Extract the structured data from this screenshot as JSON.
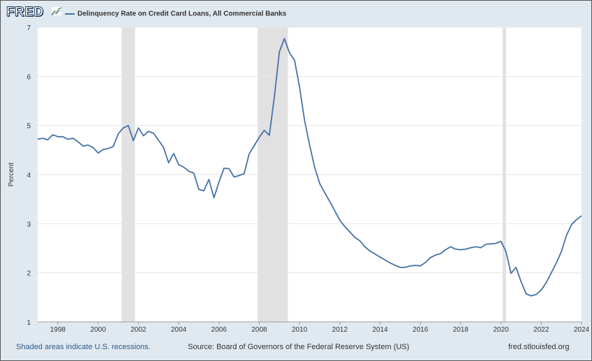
{
  "header": {
    "logo_text": "FRED",
    "logo_icon": "line-chart-icon",
    "series_legend": "Delinquency Rate on Credit Card Loans, All Commercial Banks"
  },
  "footer": {
    "note": "Shaded areas indicate U.S. recessions.",
    "source": "Source: Board of Governors of the Federal Reserve System (US)",
    "site": "fred.stlouisfed.org"
  },
  "colors": {
    "line": "#4572a7",
    "recession": "#e1e1e1",
    "grid": "#e6e6e6",
    "background": "#e1e9f0"
  },
  "chart_data": {
    "type": "line",
    "title": "Delinquency Rate on Credit Card Loans, All Commercial Banks",
    "xlabel": "",
    "ylabel": "Percent",
    "xlim": [
      1997.0,
      2024.0
    ],
    "ylim": [
      1,
      7
    ],
    "yticks": [
      1,
      2,
      3,
      4,
      5,
      6,
      7
    ],
    "xticks": [
      1998,
      2000,
      2002,
      2004,
      2006,
      2008,
      2010,
      2012,
      2014,
      2016,
      2018,
      2020,
      2022,
      2024
    ],
    "grid": true,
    "recessions": [
      [
        2001.17,
        2001.83
      ],
      [
        2007.92,
        2009.42
      ],
      [
        2020.08,
        2020.25
      ]
    ],
    "series": [
      {
        "name": "Delinquency Rate on Credit Card Loans, All Commercial Banks",
        "x": [
          1997.0,
          1997.25,
          1997.5,
          1997.75,
          1998.0,
          1998.25,
          1998.5,
          1998.75,
          1999.0,
          1999.25,
          1999.5,
          1999.75,
          2000.0,
          2000.25,
          2000.5,
          2000.75,
          2001.0,
          2001.25,
          2001.5,
          2001.75,
          2002.0,
          2002.25,
          2002.5,
          2002.75,
          2003.0,
          2003.25,
          2003.5,
          2003.75,
          2004.0,
          2004.25,
          2004.5,
          2004.75,
          2005.0,
          2005.25,
          2005.5,
          2005.75,
          2006.0,
          2006.25,
          2006.5,
          2006.75,
          2007.0,
          2007.25,
          2007.5,
          2007.75,
          2008.0,
          2008.25,
          2008.5,
          2008.75,
          2009.0,
          2009.25,
          2009.5,
          2009.75,
          2010.0,
          2010.25,
          2010.5,
          2010.75,
          2011.0,
          2011.25,
          2011.5,
          2011.75,
          2012.0,
          2012.25,
          2012.5,
          2012.75,
          2013.0,
          2013.25,
          2013.5,
          2013.75,
          2014.0,
          2014.25,
          2014.5,
          2014.75,
          2015.0,
          2015.25,
          2015.5,
          2015.75,
          2016.0,
          2016.25,
          2016.5,
          2016.75,
          2017.0,
          2017.25,
          2017.5,
          2017.75,
          2018.0,
          2018.25,
          2018.5,
          2018.75,
          2019.0,
          2019.25,
          2019.5,
          2019.75,
          2020.0,
          2020.25,
          2020.5,
          2020.75,
          2021.0,
          2021.25,
          2021.5,
          2021.75,
          2022.0,
          2022.25,
          2022.5,
          2022.75,
          2023.0,
          2023.25,
          2023.5,
          2023.75,
          2024.0
        ],
        "values": [
          4.72,
          4.74,
          4.71,
          4.81,
          4.77,
          4.77,
          4.72,
          4.74,
          4.67,
          4.58,
          4.6,
          4.55,
          4.44,
          4.51,
          4.53,
          4.57,
          4.83,
          4.95,
          5.0,
          4.69,
          4.95,
          4.79,
          4.88,
          4.84,
          4.7,
          4.55,
          4.24,
          4.43,
          4.2,
          4.15,
          4.07,
          4.03,
          3.7,
          3.67,
          3.9,
          3.53,
          3.85,
          4.13,
          4.12,
          3.95,
          3.98,
          4.02,
          4.42,
          4.59,
          4.76,
          4.9,
          4.8,
          5.58,
          6.5,
          6.77,
          6.48,
          6.33,
          5.78,
          5.1,
          4.6,
          4.15,
          3.82,
          3.63,
          3.45,
          3.26,
          3.07,
          2.94,
          2.83,
          2.72,
          2.65,
          2.53,
          2.44,
          2.38,
          2.32,
          2.26,
          2.2,
          2.15,
          2.11,
          2.11,
          2.14,
          2.15,
          2.14,
          2.21,
          2.31,
          2.36,
          2.39,
          2.47,
          2.53,
          2.48,
          2.47,
          2.48,
          2.51,
          2.53,
          2.51,
          2.58,
          2.59,
          2.6,
          2.64,
          2.43,
          1.99,
          2.11,
          1.82,
          1.57,
          1.53,
          1.56,
          1.65,
          1.8,
          2.0,
          2.2,
          2.43,
          2.76,
          2.98,
          3.08,
          3.16
        ]
      }
    ]
  }
}
